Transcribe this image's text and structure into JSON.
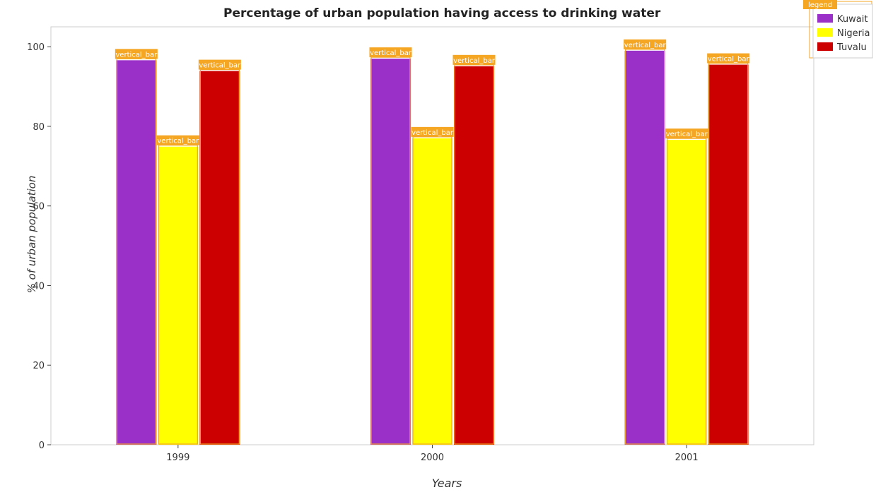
{
  "chart_data": {
    "type": "bar",
    "title": "Percentage of urban population having access to drinking water",
    "xlabel": "Years",
    "ylabel": "% of urban population",
    "categories": [
      "1999",
      "2000",
      "2001"
    ],
    "series": [
      {
        "name": "Kuwait",
        "color": "#9b30c8",
        "values": [
          96.6,
          97.0,
          99.0
        ]
      },
      {
        "name": "Nigeria",
        "color": "#ffff00",
        "values": [
          74.9,
          77.0,
          76.6
        ]
      },
      {
        "name": "Tuvalu",
        "color": "#cc0000",
        "values": [
          93.9,
          95.1,
          95.5
        ]
      }
    ],
    "ylim": [
      0,
      105
    ],
    "yticks": [
      0,
      20,
      40,
      60,
      80,
      100
    ],
    "grid": false,
    "legend_position": "top-right",
    "annotation_label": "vertical_bar",
    "legend_annotation_label": "legend"
  }
}
